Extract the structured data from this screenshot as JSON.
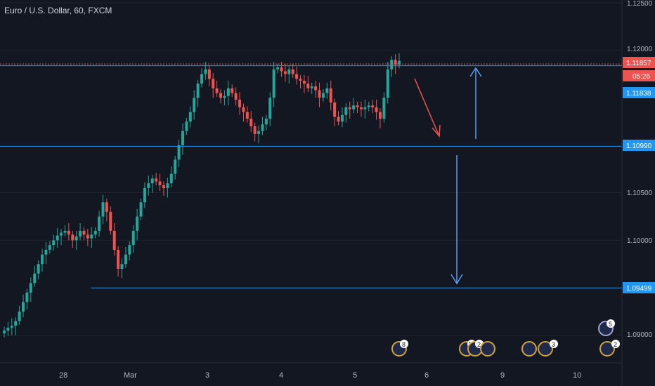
{
  "title": "Euro / U.S. Dollar, 60, FXCM",
  "colors": {
    "background": "#131722",
    "up": "#26a69a",
    "down": "#ef5350",
    "line": "#2196f3",
    "grid": "#2a2e39",
    "axis_text": "#b2b5be",
    "arrow_blue": "#5b9cf6",
    "arrow_red": "#ef5350"
  },
  "axis": {
    "y_ticks": [
      "1.12500",
      "1.12000",
      "1.10500",
      "1.10000",
      "1.09000"
    ],
    "x_ticks": [
      "28",
      "Mar",
      "3",
      "4",
      "5",
      "6",
      "9",
      "10"
    ]
  },
  "labels": {
    "price_current": "1.11857",
    "countdown": "05:26",
    "price_level_1": "1.11838",
    "price_level_2": "1.10990",
    "price_level_3": "1.09499"
  },
  "events": [
    "8",
    "12",
    "2",
    "3",
    "5",
    "2"
  ],
  "chart_data": {
    "type": "candlestick",
    "title": "Euro / U.S. Dollar, 60, FXCM",
    "ylim": [
      1.0871,
      1.1253
    ],
    "x": [
      "28",
      "Mar",
      "3",
      "4",
      "5",
      "6",
      "9",
      "10"
    ],
    "horizontal_lines": [
      1.11857,
      1.11838,
      1.1099,
      1.09499
    ],
    "close_series": [
      1.0905,
      1.0908,
      1.091,
      1.0915,
      1.0925,
      1.0935,
      1.0945,
      1.0955,
      1.0965,
      1.0975,
      1.0985,
      1.099,
      1.0995,
      1.1,
      1.1005,
      1.1008,
      1.101,
      1.1006,
      1.1,
      1.1004,
      1.101,
      1.1006,
      1.1002,
      1.1006,
      1.101,
      1.1025,
      1.104,
      1.103,
      1.101,
      1.099,
      1.097,
      1.0975,
      1.0985,
      1.0995,
      1.101,
      1.1025,
      1.104,
      1.1055,
      1.106,
      1.1065,
      1.1062,
      1.1058,
      1.1055,
      1.106,
      1.107,
      1.1085,
      1.11,
      1.1115,
      1.1125,
      1.1135,
      1.115,
      1.1165,
      1.1175,
      1.118,
      1.117,
      1.116,
      1.1155,
      1.115,
      1.1152,
      1.116,
      1.1155,
      1.1148,
      1.114,
      1.1135,
      1.1128,
      1.112,
      1.1112,
      1.1115,
      1.1122,
      1.1128,
      1.115,
      1.118,
      1.1182,
      1.1178,
      1.1175,
      1.118,
      1.1175,
      1.117,
      1.1168,
      1.1165,
      1.116,
      1.1162,
      1.1158,
      1.115,
      1.1155,
      1.116,
      1.1145,
      1.113,
      1.1125,
      1.1132,
      1.114,
      1.1138,
      1.1142,
      1.114,
      1.1138,
      1.114,
      1.1142,
      1.114,
      1.1135,
      1.1128,
      1.115,
      1.118,
      1.119,
      1.1185,
      1.1189
    ]
  }
}
